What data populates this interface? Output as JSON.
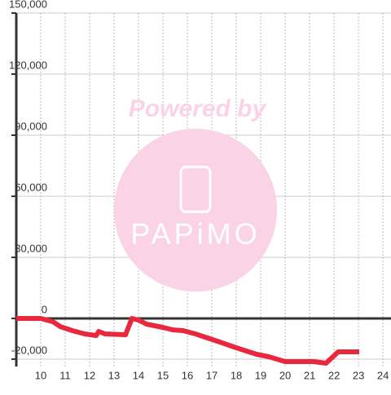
{
  "chart_data": {
    "type": "line",
    "x": [
      9,
      10,
      10.5,
      10.8,
      11.3,
      11.8,
      12.27,
      12.37,
      12.63,
      13.47,
      13.73,
      14,
      14.33,
      15,
      15.4,
      15.83,
      16.33,
      16.83,
      17.33,
      18,
      18.83,
      19.33,
      20,
      21.17,
      21.67,
      22.17,
      23.03
    ],
    "series": [
      {
        "color": "#e8283c",
        "values": [
          0,
          0,
          -1600,
          -4000,
          -6000,
          -7600,
          -8400,
          -6400,
          -7600,
          -8000,
          0,
          -800,
          -2800,
          -4400,
          -5600,
          -6000,
          -7600,
          -9600,
          -11600,
          -14400,
          -17600,
          -18800,
          -21200,
          -21200,
          -22000,
          -16400,
          -16400
        ]
      }
    ],
    "xlim": [
      9,
      24.33
    ],
    "xticks": [
      10,
      11,
      12,
      13,
      14,
      15,
      16,
      17,
      18,
      19,
      20,
      21,
      22,
      23,
      24
    ],
    "ylim": [
      -23600,
      150000
    ],
    "yticks": [
      {
        "value": -20000,
        "label": "-20,000"
      },
      0,
      {
        "value": 30000,
        "label": "30,000"
      },
      {
        "value": 60000,
        "label": "60,000"
      },
      {
        "value": 90000,
        "label": "90,000"
      },
      {
        "value": 120000,
        "label": "120,000"
      },
      {
        "value": 150000,
        "label": "150,000"
      }
    ],
    "grid": true,
    "watermark": {
      "text": "Powered by",
      "logo": "PAPiMO"
    }
  }
}
